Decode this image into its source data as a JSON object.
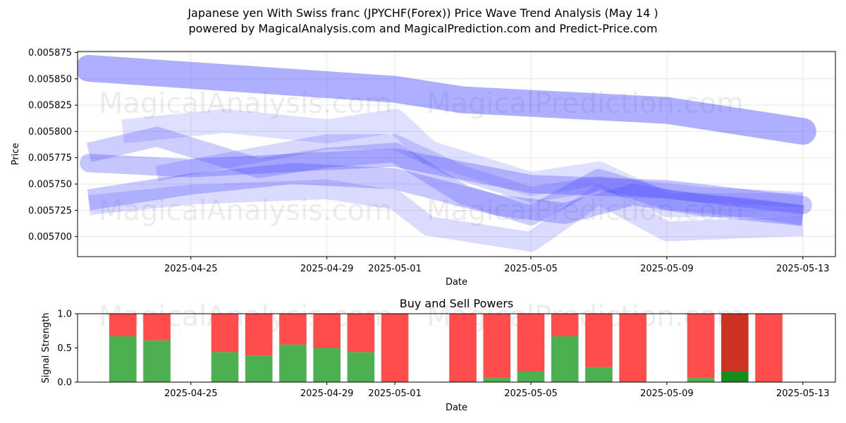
{
  "title_line1": "Japanese yen With Swiss franc (JPYCHF(Forex)) Price Wave Trend Analysis (May 14 )",
  "title_line2": "powered by MagicalAnalysis.com and MagicalPrediction.com and Predict-Price.com",
  "watermarks": [
    "MagicalAnalysis.com",
    "MagicalPrediction.com"
  ],
  "colors": {
    "band": "#4d4dff",
    "buy": "#4caf50",
    "sell": "#ff4d4d",
    "buy_strong": "#1a8a1a",
    "sell_strong": "#cc3322"
  },
  "chart_data": [
    {
      "type": "area",
      "title": "",
      "xlabel": "Date",
      "ylabel": "Price",
      "x_ticks": [
        "2025-04-25",
        "2025-04-29",
        "2025-05-01",
        "2025-05-05",
        "2025-05-09",
        "2025-05-13"
      ],
      "y_ticks": [
        "0.005700",
        "0.005725",
        "0.005750",
        "0.005775",
        "0.005800",
        "0.005825",
        "0.005850",
        "0.005875"
      ],
      "xlim": [
        "2025-04-21T16:00",
        "2025-05-13T23:00"
      ],
      "ylim": [
        0.005681,
        0.005876
      ],
      "grid": true,
      "series": [
        {
          "x": [
            "2025-04-22",
            "2025-05-01",
            "2025-05-03",
            "2025-05-09",
            "2025-05-13"
          ],
          "values": [
            0.00586,
            0.00584,
            0.00583,
            0.00582,
            0.0058
          ]
        },
        {
          "x": [
            "2025-04-22",
            "2025-04-25",
            "2025-04-29",
            "2025-05-01",
            "2025-05-05",
            "2025-05-09",
            "2025-05-13"
          ],
          "values": [
            0.00577,
            0.005765,
            0.005772,
            0.005775,
            0.00575,
            0.005745,
            0.00573
          ]
        },
        {
          "x": [
            "2025-04-22",
            "2025-04-24",
            "2025-04-27",
            "2025-04-29",
            "2025-05-01",
            "2025-05-03",
            "2025-05-05",
            "2025-05-07",
            "2025-05-09",
            "2025-05-12",
            "2025-05-13"
          ],
          "values": [
            0.00578,
            0.005795,
            0.005765,
            0.005775,
            0.00578,
            0.00574,
            0.00572,
            0.005755,
            0.005735,
            0.005725,
            0.00572
          ]
        },
        {
          "x": [
            "2025-04-22",
            "2025-04-25",
            "2025-04-28",
            "2025-05-01",
            "2025-05-04",
            "2025-05-06",
            "2025-05-08",
            "2025-05-10",
            "2025-05-13"
          ],
          "values": [
            0.005735,
            0.00575,
            0.00576,
            0.005755,
            0.00573,
            0.005722,
            0.00574,
            0.00573,
            0.00572
          ]
        },
        {
          "x": [
            "2025-04-23",
            "2025-04-26",
            "2025-04-29",
            "2025-05-01",
            "2025-05-02",
            "2025-05-05",
            "2025-05-07",
            "2025-05-09",
            "2025-05-13"
          ],
          "values": [
            0.0058,
            0.00581,
            0.0058,
            0.00581,
            0.00578,
            0.00575,
            0.00576,
            0.00573,
            0.00573
          ]
        },
        {
          "x": [
            "2025-04-22",
            "2025-04-25",
            "2025-04-29",
            "2025-05-01",
            "2025-05-02",
            "2025-05-05",
            "2025-05-07",
            "2025-05-09",
            "2025-05-13"
          ],
          "values": [
            0.00573,
            0.00574,
            0.005745,
            0.005735,
            0.00571,
            0.005695,
            0.00574,
            0.005705,
            0.00571
          ]
        },
        {
          "x": [
            "2025-04-24",
            "2025-04-29",
            "2025-05-01",
            "2025-05-03",
            "2025-05-05",
            "2025-05-07",
            "2025-05-10",
            "2025-05-13"
          ],
          "values": [
            0.00576,
            0.00579,
            0.00579,
            0.00576,
            0.00574,
            0.00575,
            0.00574,
            0.005735
          ]
        }
      ]
    },
    {
      "type": "bar",
      "title": "Buy and Sell Powers",
      "xlabel": "Date",
      "ylabel": "Signal Strength",
      "x_ticks": [
        "2025-04-25",
        "2025-04-29",
        "2025-05-01",
        "2025-05-05",
        "2025-05-09",
        "2025-05-13"
      ],
      "y_ticks": [
        "0.0",
        "0.5",
        "1.0"
      ],
      "ylim": [
        0,
        1
      ],
      "categories": [
        "2025-04-23",
        "2025-04-24",
        "2025-04-26",
        "2025-04-27",
        "2025-04-28",
        "2025-04-29",
        "2025-04-30",
        "2025-05-01",
        "2025-05-03",
        "2025-05-04",
        "2025-05-05",
        "2025-05-06",
        "2025-05-07",
        "2025-05-08",
        "2025-05-10",
        "2025-05-11",
        "2025-05-12"
      ],
      "series": [
        {
          "name": "buy",
          "values": [
            0.67,
            0.61,
            0.44,
            0.39,
            0.55,
            0.5,
            0.44,
            0.0,
            0.0,
            0.06,
            0.16,
            0.67,
            0.22,
            0.0,
            0.06,
            0.16,
            0.0
          ]
        },
        {
          "name": "sell",
          "values": [
            0.33,
            0.39,
            0.56,
            0.61,
            0.45,
            0.5,
            0.56,
            1.0,
            1.0,
            0.94,
            0.84,
            0.33,
            0.78,
            1.0,
            0.94,
            0.84,
            1.0
          ]
        }
      ],
      "highlight": [
        "2025-05-11"
      ]
    }
  ]
}
